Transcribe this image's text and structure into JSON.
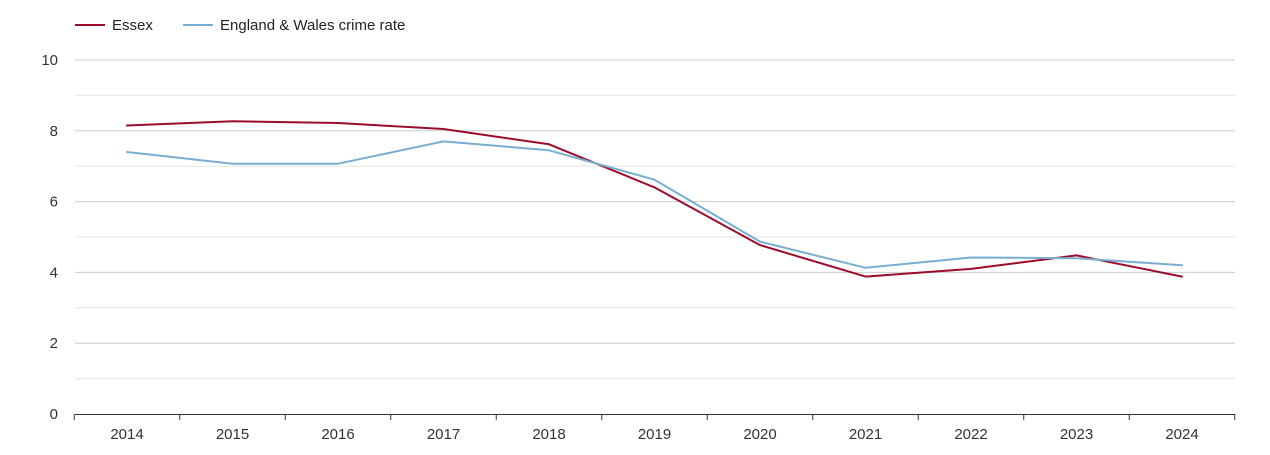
{
  "chart_data": {
    "type": "line",
    "x": [
      "2014",
      "2015",
      "2016",
      "2017",
      "2018",
      "2019",
      "2020",
      "2021",
      "2022",
      "2023",
      "2024"
    ],
    "series": [
      {
        "name": "Essex",
        "color": "#9b0d2b",
        "values": [
          8.15,
          8.27,
          8.22,
          8.05,
          7.62,
          6.4,
          4.77,
          3.88,
          4.1,
          4.48,
          3.88
        ]
      },
      {
        "name": "England & Wales crime rate",
        "color": "#78aed2",
        "values": [
          7.4,
          7.07,
          7.07,
          7.7,
          7.45,
          6.62,
          4.87,
          4.13,
          4.42,
          4.4,
          4.2
        ]
      }
    ],
    "ylim": [
      0,
      10
    ],
    "y_ticks": [
      0,
      2,
      4,
      6,
      8,
      10
    ],
    "grid": true,
    "legend_position": "top-left",
    "xlabel": "",
    "ylabel": "",
    "title": ""
  }
}
